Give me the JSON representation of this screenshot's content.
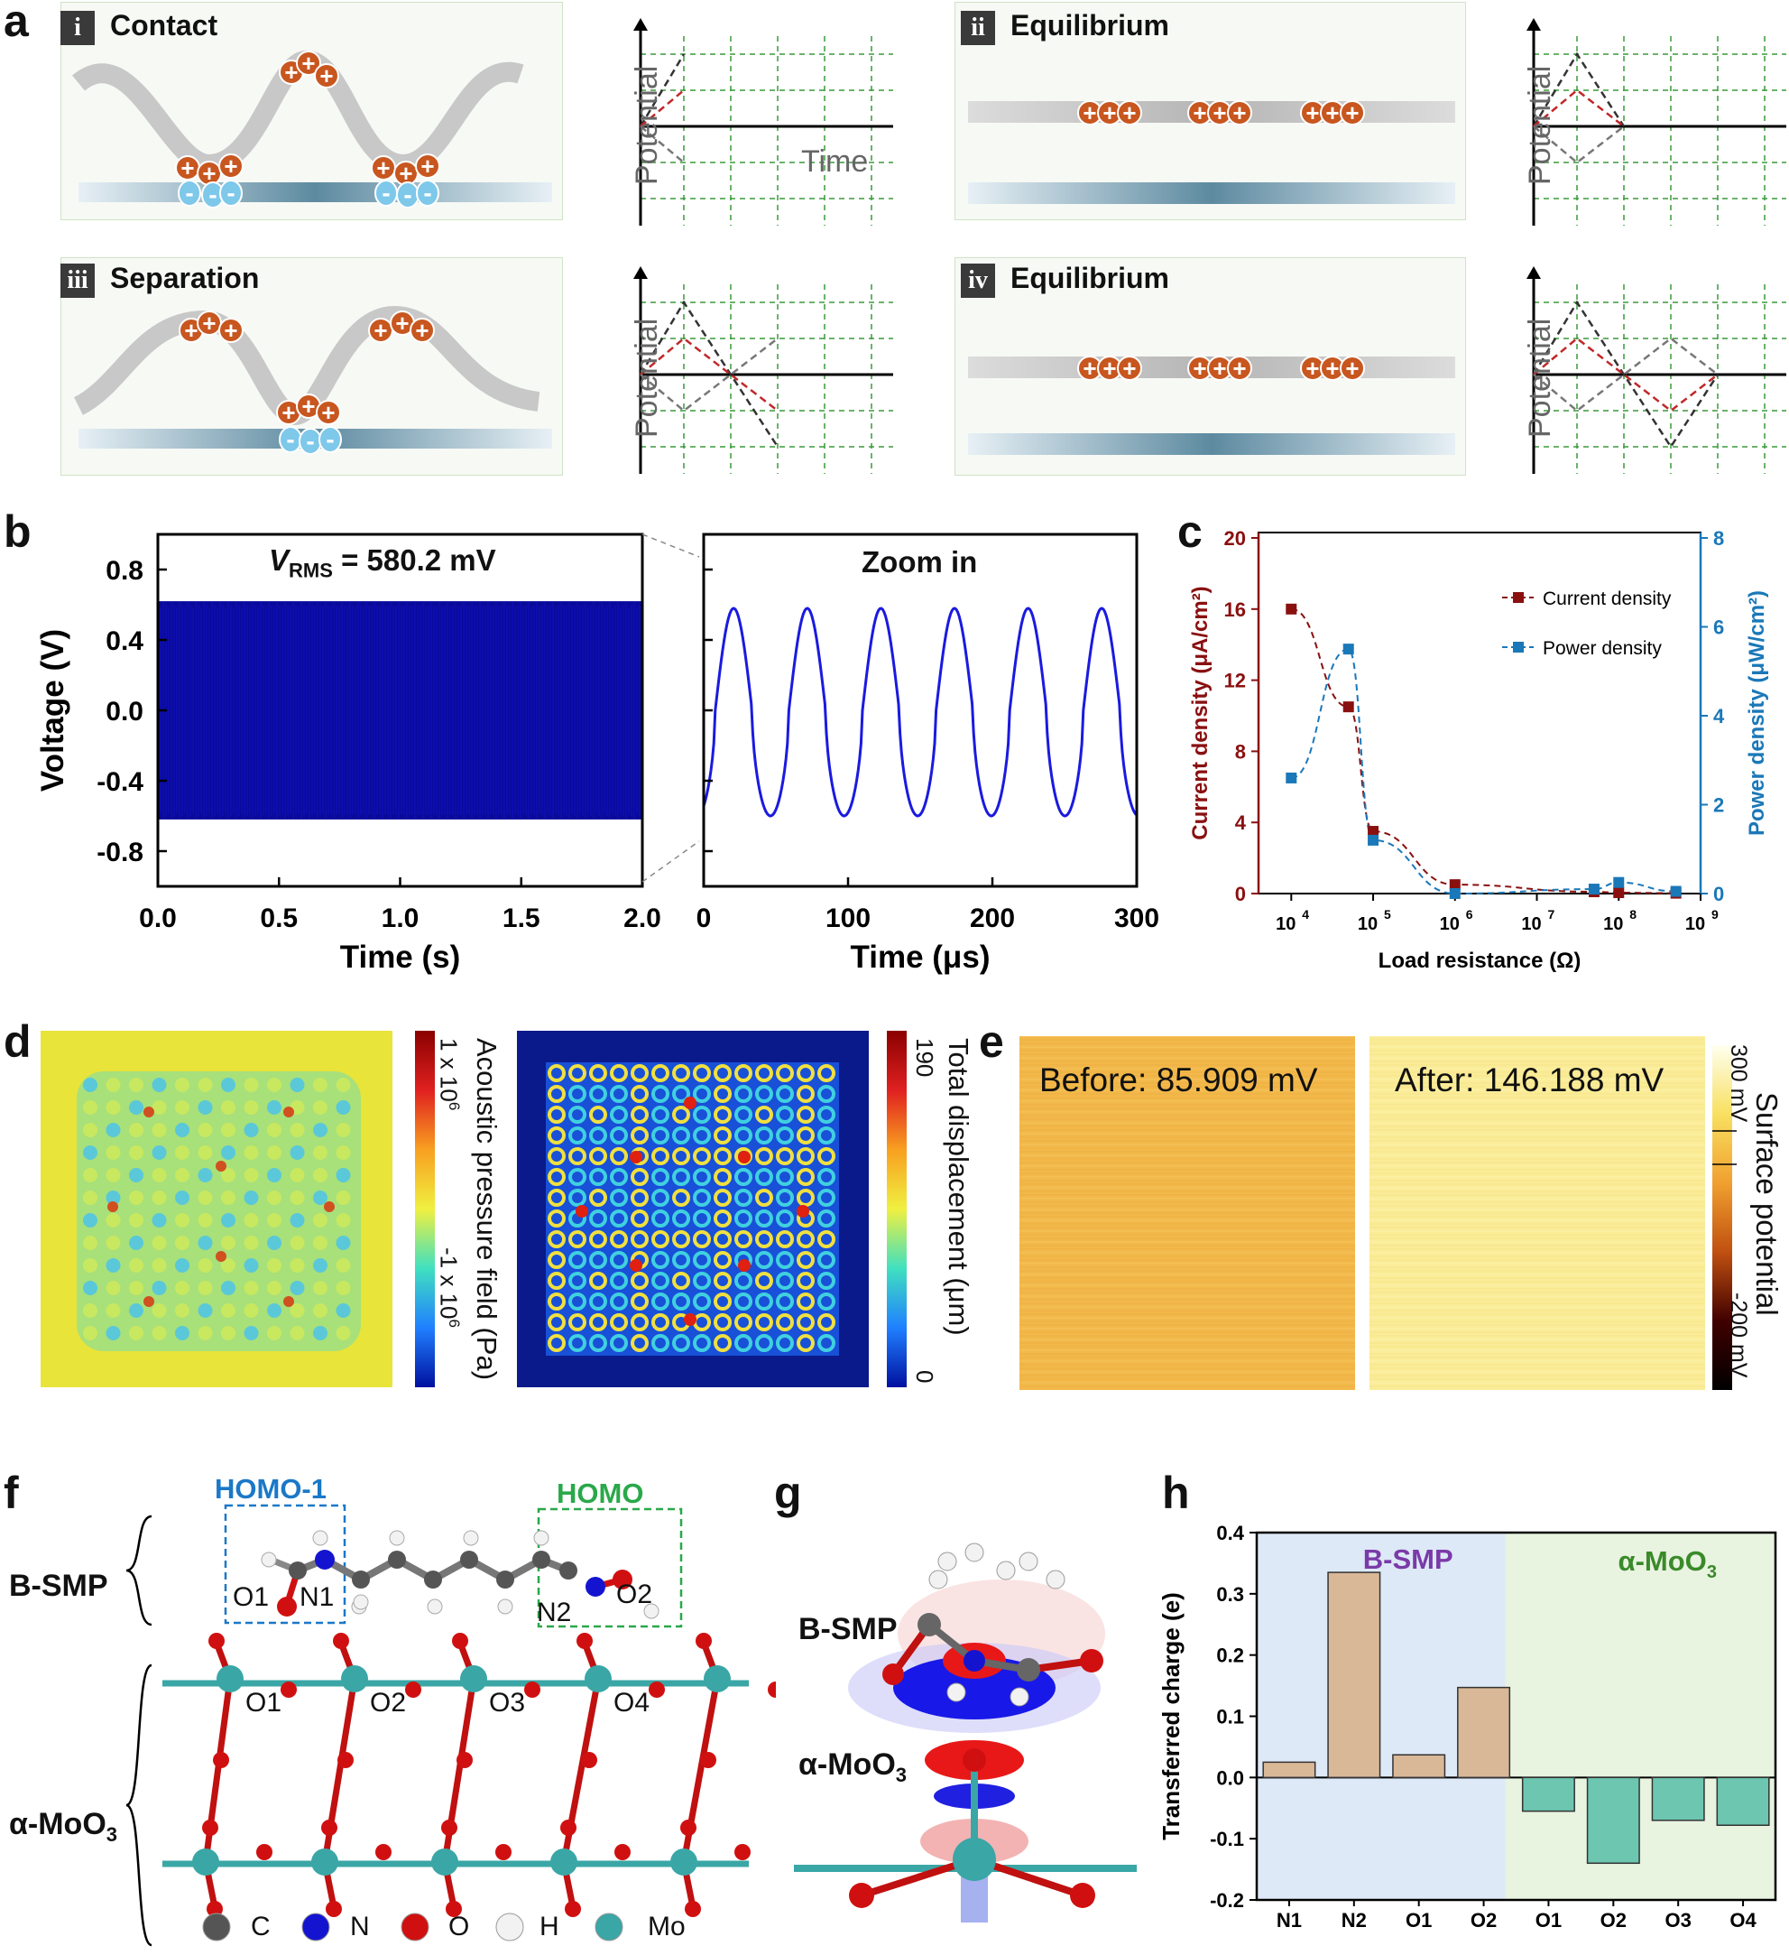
{
  "panel_labels": {
    "a": "a",
    "b": "b",
    "c": "c",
    "d": "d",
    "e": "e",
    "f": "f",
    "g": "g",
    "h": "h"
  },
  "panel_a": {
    "stages": [
      {
        "numeral": "i",
        "title": "Contact"
      },
      {
        "numeral": "ii",
        "title": "Equilibrium"
      },
      {
        "numeral": "iii",
        "title": "Separation"
      },
      {
        "numeral": "iv",
        "title": "Equilibrium"
      }
    ],
    "potential_label": "Potential",
    "time_label": "Time",
    "plus": "+",
    "minus": "-",
    "colors": {
      "positive": "#c8561f",
      "negative": "#7ec8ea",
      "red_line": "#c0282a",
      "dark_line": "#333333",
      "grey_line": "#777777",
      "grid": "#3a9a3a"
    }
  },
  "panel_b": {
    "vrms_v": "V",
    "vrms_sub": "RMS",
    "vrms_rest": " = 580.2 mV",
    "zoom_label": "Zoom in",
    "ylabel": "Voltage (V)",
    "xlabel_left": "Time (s)",
    "xlabel_right": "Time (μs)",
    "yticks": [
      "0.8",
      "0.4",
      "0.0",
      "-0.4",
      "-0.8"
    ],
    "xticks_left": [
      "0.0",
      "0.5",
      "1.0",
      "1.5",
      "2.0"
    ],
    "xticks_right": [
      "0",
      "100",
      "200",
      "300"
    ],
    "color": "#0a0a9a"
  },
  "chart_data": [
    {
      "type": "line",
      "title": "VRMS = 580.2 mV",
      "xlabel": "Time (s)",
      "ylabel": "Voltage (V)",
      "xlim": [
        0,
        2.0
      ],
      "ylim": [
        -1.0,
        1.0
      ],
      "series": [
        {
          "name": "Voltage",
          "amplitude": 0.62,
          "note": "dense oscillation filling band"
        }
      ]
    },
    {
      "type": "line",
      "title": "Zoom in",
      "xlabel": "Time (μs)",
      "ylabel": "Voltage (V)",
      "xlim": [
        0,
        300
      ],
      "ylim": [
        -1.0,
        1.0
      ],
      "series": [
        {
          "name": "Voltage",
          "period": 51,
          "peak": 0.58,
          "trough": -0.6
        }
      ]
    },
    {
      "type": "line",
      "xlabel": "Load resistance (Ω)",
      "ylabel": "Current density (μA/cm²)",
      "ylabel_right": "Power density (μW/cm²)",
      "ylim": [
        0,
        20
      ],
      "ylim_right": [
        0,
        8
      ],
      "x": [
        10000,
        50000,
        100000,
        1000000,
        50000000,
        100000000,
        500000000
      ],
      "series": [
        {
          "name": "Current density",
          "axis": "left",
          "values": [
            16,
            10.5,
            3.5,
            0.5,
            0.1,
            0.05,
            0.02
          ]
        },
        {
          "name": "Power density",
          "axis": "right",
          "values": [
            2.6,
            5.5,
            1.2,
            0,
            0.1,
            0.25,
            0.05
          ]
        }
      ]
    },
    {
      "type": "bar",
      "ylabel": "Transferred charge (e)",
      "ylim": [
        -0.2,
        0.4
      ],
      "categories": [
        "N1",
        "N2",
        "O1",
        "O2",
        "O1",
        "O2",
        "O3",
        "O4"
      ],
      "values": [
        0.025,
        0.335,
        0.037,
        0.147,
        -0.055,
        -0.14,
        -0.07,
        -0.078
      ],
      "groups": [
        "B-SMP",
        "B-SMP",
        "B-SMP",
        "B-SMP",
        "α-MoO3",
        "α-MoO3",
        "α-MoO3",
        "α-MoO3"
      ]
    }
  ],
  "panel_c": {
    "legend": [
      "Current density",
      "Power density"
    ],
    "xlabel": "Load resistance (Ω)",
    "ylabel_left_main": "Current density ",
    "ylabel_left_unit": "(μA/cm²)",
    "ylabel_right_main": "Power density ",
    "ylabel_right_unit": "(μW/cm²)",
    "yticks_left": [
      "20",
      "16",
      "12",
      "8",
      "4",
      "0"
    ],
    "yticks_right": [
      "8",
      "6",
      "4",
      "2",
      "0"
    ],
    "xticks": [
      "10",
      "10",
      "10",
      "10",
      "10",
      "10"
    ],
    "xticks_exp": [
      "4",
      "5",
      "6",
      "7",
      "8",
      "9"
    ],
    "colors": {
      "current": "#8a1010",
      "power": "#1a78b8"
    }
  },
  "panel_d": {
    "left_bar_label": "Acoustic pressure field (Pa)",
    "left_bar_top": "1 x 10",
    "left_bar_top_exp": "6",
    "left_bar_bottom": "-1 x 10",
    "left_bar_bottom_exp": "6",
    "right_bar_label": "Total displacement (μm)",
    "right_bar_top": "190",
    "right_bar_bottom": "0"
  },
  "panel_e": {
    "before": "Before: 85.909 mV",
    "after": "After: 146.188 mV",
    "bar_label": "Surface potential",
    "bar_top": "300 mV",
    "bar_bottom": "-200 mV"
  },
  "panel_f": {
    "homo1": "HOMO-1",
    "homo": "HOMO",
    "bsmp": "B-SMP",
    "moo3_main": "α-MoO",
    "moo3_sub": "3",
    "atoms_top": [
      "O1",
      "N1",
      "N2",
      "O2"
    ],
    "atoms_bottom": [
      "O1",
      "O2",
      "O3",
      "O4"
    ],
    "legend": [
      "C",
      "N",
      "O",
      "H",
      "Mo"
    ],
    "colors": {
      "C": "#555555",
      "N": "#1414d0",
      "O": "#d01010",
      "H": "#f2f2f2",
      "Mo": "#3aa6a6",
      "homo1": "#1a78c8",
      "homo": "#2aa84a"
    }
  },
  "panel_g": {
    "bsmp": "B-SMP",
    "moo3_main": "α-MoO",
    "moo3_sub": "3"
  },
  "panel_h": {
    "group_left": "B-SMP",
    "group_right_main": "α-MoO",
    "group_right_sub": "3",
    "ylabel": "Transferred charge (e)",
    "yticks": [
      "0.4",
      "0.3",
      "0.2",
      "0.1",
      "0.0",
      "-0.1",
      "-0.2"
    ],
    "colors": {
      "bsmp_bar": "#d9b898",
      "moo3_bar": "#6cc6b0",
      "bsmp_bg": "#dde9f6",
      "moo3_bg": "#e8f3e0",
      "bsmp_text": "#7a3aa8",
      "moo3_text": "#3a8a2a"
    }
  }
}
